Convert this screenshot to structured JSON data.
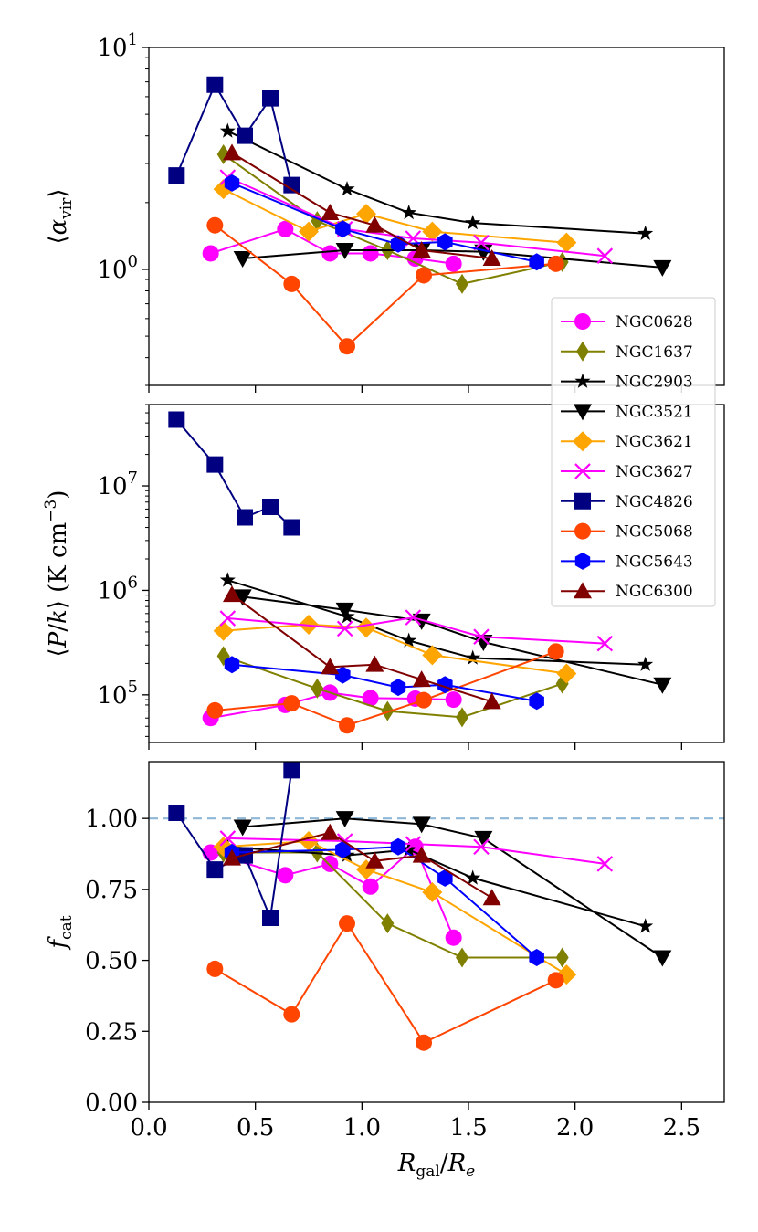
{
  "chart_data": {
    "type": "line",
    "xlabel_parts": {
      "main": "R",
      "sub1": "gal",
      "slash": "/",
      "main2": "R",
      "sub2": "e"
    },
    "xlim": [
      0.0,
      2.7
    ],
    "xticks": [
      {
        "v": 0.0,
        "label": "0.0"
      },
      {
        "v": 0.5,
        "label": "0.5"
      },
      {
        "v": 1.0,
        "label": "1.0"
      },
      {
        "v": 1.5,
        "label": "1.5"
      },
      {
        "v": 2.0,
        "label": "2.0"
      },
      {
        "v": 2.5,
        "label": "2.5"
      }
    ],
    "legend": {
      "placement": "right, between top and middle panels",
      "entries": [
        "NGC0628",
        "NGC1637",
        "NGC2903",
        "NGC3521",
        "NGC3621",
        "NGC3627",
        "NGC4826",
        "NGC5068",
        "NGC5643",
        "NGC6300"
      ]
    },
    "series_style": [
      {
        "name": "NGC0628",
        "color": "#ff00ff",
        "marker": "circle"
      },
      {
        "name": "NGC1637",
        "color": "#808000",
        "marker": "thin_diamond"
      },
      {
        "name": "NGC2903",
        "color": "#000000",
        "marker": "star"
      },
      {
        "name": "NGC3521",
        "color": "#000000",
        "marker": "triangle_down"
      },
      {
        "name": "NGC3621",
        "color": "#ffa500",
        "marker": "diamond"
      },
      {
        "name": "NGC3627",
        "color": "#ff00ff",
        "marker": "x"
      },
      {
        "name": "NGC4826",
        "color": "#000080",
        "marker": "square"
      },
      {
        "name": "NGC5068",
        "color": "#ff4500",
        "marker": "circle"
      },
      {
        "name": "NGC5643",
        "color": "#0000ff",
        "marker": "hexagon"
      },
      {
        "name": "NGC6300",
        "color": "#800000",
        "marker": "triangle_up"
      }
    ],
    "panels": [
      {
        "id": "alpha",
        "ylabel": "⟨α_vir⟩",
        "yscale": "log",
        "ylim": [
          0.3,
          10
        ],
        "yticks_major": [
          {
            "v": 1,
            "base": "10",
            "exp": "0"
          },
          {
            "v": 10,
            "base": "10",
            "exp": "1"
          }
        ],
        "series": [
          {
            "name": "NGC0628",
            "x": [
              0.29,
              0.64,
              0.85,
              1.04,
              1.25,
              1.43
            ],
            "y": [
              1.18,
              1.52,
              1.18,
              1.18,
              1.12,
              1.06
            ]
          },
          {
            "name": "NGC1637",
            "x": [
              0.35,
              0.79,
              1.12,
              1.47,
              1.94
            ],
            "y": [
              3.3,
              1.65,
              1.22,
              0.86,
              1.08
            ]
          },
          {
            "name": "NGC2903",
            "x": [
              0.37,
              0.93,
              1.22,
              1.52,
              2.33
            ],
            "y": [
              4.2,
              2.3,
              1.8,
              1.62,
              1.45
            ]
          },
          {
            "name": "NGC3521",
            "x": [
              0.44,
              0.92,
              1.28,
              1.57,
              2.41
            ],
            "y": [
              1.12,
              1.22,
              1.22,
              1.2,
              1.02
            ]
          },
          {
            "name": "NGC3621",
            "x": [
              0.35,
              0.75,
              1.02,
              1.33,
              1.96
            ],
            "y": [
              2.3,
              1.48,
              1.78,
              1.48,
              1.32
            ]
          },
          {
            "name": "NGC3627",
            "x": [
              0.37,
              0.92,
              1.24,
              1.56,
              2.14
            ],
            "y": [
              2.6,
              1.52,
              1.38,
              1.32,
              1.15
            ]
          },
          {
            "name": "NGC4826",
            "x": [
              0.13,
              0.31,
              0.45,
              0.57,
              0.67
            ],
            "y": [
              2.65,
              6.8,
              4.0,
              5.9,
              2.4
            ]
          },
          {
            "name": "NGC5068",
            "x": [
              0.31,
              0.67,
              0.93,
              1.29,
              1.91
            ],
            "y": [
              1.58,
              0.86,
              0.45,
              0.94,
              1.06
            ]
          },
          {
            "name": "NGC5643",
            "x": [
              0.39,
              0.91,
              1.17,
              1.39,
              1.82
            ],
            "y": [
              2.45,
              1.52,
              1.3,
              1.33,
              1.08
            ]
          },
          {
            "name": "NGC6300",
            "x": [
              0.39,
              0.85,
              1.06,
              1.28,
              1.61
            ],
            "y": [
              3.35,
              1.8,
              1.58,
              1.22,
              1.12
            ]
          }
        ]
      },
      {
        "id": "pressure",
        "ylabel": "⟨P/k⟩ (K cm⁻³)",
        "yscale": "log",
        "ylim": [
          35000,
          60000000
        ],
        "yticks_major": [
          {
            "v": 100000,
            "base": "10",
            "exp": "5"
          },
          {
            "v": 1000000,
            "base": "10",
            "exp": "6"
          },
          {
            "v": 10000000,
            "base": "10",
            "exp": "7"
          }
        ],
        "series": [
          {
            "name": "NGC0628",
            "x": [
              0.29,
              0.64,
              0.85,
              1.04,
              1.25,
              1.43
            ],
            "y": [
              60000,
              80000,
              105000,
              93000,
              92000,
              90000
            ]
          },
          {
            "name": "NGC1637",
            "x": [
              0.35,
              0.79,
              1.12,
              1.47,
              1.94
            ],
            "y": [
              235000,
              115000,
              70000,
              61000,
              128000
            ]
          },
          {
            "name": "NGC2903",
            "x": [
              0.37,
              0.93,
              1.22,
              1.52,
              2.33
            ],
            "y": [
              1250000,
              560000,
              330000,
              225000,
              195000
            ]
          },
          {
            "name": "NGC3521",
            "x": [
              0.44,
              0.92,
              1.28,
              1.57,
              2.41
            ],
            "y": [
              870000,
              650000,
              510000,
              320000,
              125000
            ]
          },
          {
            "name": "NGC3621",
            "x": [
              0.35,
              0.75,
              1.02,
              1.33,
              1.96
            ],
            "y": [
              410000,
              470000,
              440000,
              240000,
              160000
            ]
          },
          {
            "name": "NGC3627",
            "x": [
              0.37,
              0.92,
              1.24,
              1.56,
              2.14
            ],
            "y": [
              540000,
              430000,
              550000,
              360000,
              310000
            ]
          },
          {
            "name": "NGC4826",
            "x": [
              0.13,
              0.31,
              0.45,
              0.57,
              0.67
            ],
            "y": [
              43000000,
              16000000,
              5000000,
              6300000,
              4000000
            ]
          },
          {
            "name": "NGC5068",
            "x": [
              0.31,
              0.67,
              0.93,
              1.29,
              1.91
            ],
            "y": [
              71000,
              83000,
              51000,
              89000,
              260000
            ]
          },
          {
            "name": "NGC5643",
            "x": [
              0.39,
              0.91,
              1.17,
              1.39,
              1.82
            ],
            "y": [
              195000,
              155000,
              118000,
              125000,
              87000
            ]
          },
          {
            "name": "NGC6300",
            "x": [
              0.39,
              0.85,
              1.06,
              1.28,
              1.61
            ],
            "y": [
              910000,
              185000,
              195000,
              140000,
              86000
            ]
          }
        ]
      },
      {
        "id": "fcat",
        "ylabel": "f_cat",
        "yscale": "linear",
        "ylim": [
          0.0,
          1.2
        ],
        "yticks_major": [
          {
            "v": 0.0,
            "label": "0.00"
          },
          {
            "v": 0.25,
            "label": "0.25"
          },
          {
            "v": 0.5,
            "label": "0.50"
          },
          {
            "v": 0.75,
            "label": "0.75"
          },
          {
            "v": 1.0,
            "label": "1.00"
          }
        ],
        "reference_line": {
          "y": 1.0,
          "color": "#8fb8d8",
          "style": "dashed"
        },
        "series": [
          {
            "name": "NGC0628",
            "x": [
              0.29,
              0.64,
              0.85,
              1.04,
              1.25,
              1.43
            ],
            "y": [
              0.88,
              0.8,
              0.84,
              0.76,
              0.9,
              0.58
            ]
          },
          {
            "name": "NGC1637",
            "x": [
              0.35,
              0.79,
              1.12,
              1.47,
              1.94
            ],
            "y": [
              0.88,
              0.88,
              0.63,
              0.51,
              0.51
            ]
          },
          {
            "name": "NGC2903",
            "x": [
              0.37,
              0.93,
              1.22,
              1.52,
              2.33
            ],
            "y": [
              0.9,
              0.87,
              0.89,
              0.79,
              0.62
            ]
          },
          {
            "name": "NGC3521",
            "x": [
              0.44,
              0.92,
              1.28,
              1.57,
              2.41
            ],
            "y": [
              0.97,
              1.0,
              0.98,
              0.93,
              0.51
            ]
          },
          {
            "name": "NGC3621",
            "x": [
              0.35,
              0.75,
              1.02,
              1.33,
              1.96
            ],
            "y": [
              0.9,
              0.92,
              0.82,
              0.74,
              0.45
            ]
          },
          {
            "name": "NGC3627",
            "x": [
              0.37,
              0.92,
              1.24,
              1.56,
              2.14
            ],
            "y": [
              0.93,
              0.92,
              0.91,
              0.9,
              0.84
            ]
          },
          {
            "name": "NGC4826",
            "x": [
              0.13,
              0.31,
              0.45,
              0.57,
              0.67
            ],
            "y": [
              1.02,
              0.82,
              0.87,
              0.65,
              1.17
            ]
          },
          {
            "name": "NGC5068",
            "x": [
              0.31,
              0.67,
              0.93,
              1.29,
              1.91
            ],
            "y": [
              0.47,
              0.31,
              0.63,
              0.21,
              0.43
            ]
          },
          {
            "name": "NGC5643",
            "x": [
              0.39,
              0.91,
              1.17,
              1.39,
              1.82
            ],
            "y": [
              0.88,
              0.89,
              0.9,
              0.79,
              0.51
            ]
          },
          {
            "name": "NGC6300",
            "x": [
              0.39,
              0.85,
              1.06,
              1.28,
              1.61
            ],
            "y": [
              0.86,
              0.95,
              0.85,
              0.87,
              0.72
            ]
          }
        ]
      }
    ]
  }
}
